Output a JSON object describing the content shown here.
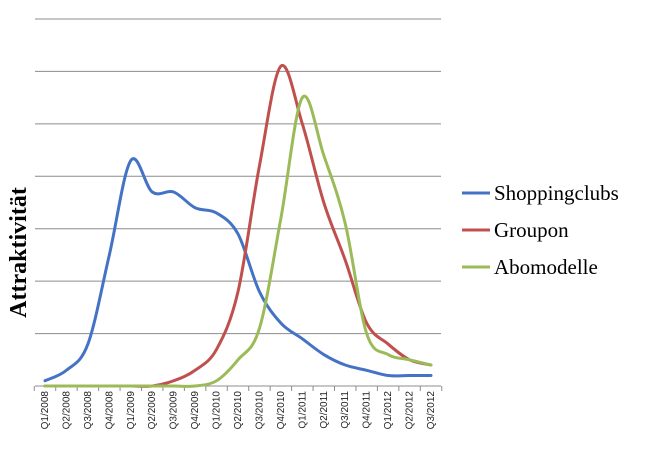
{
  "chart_data": {
    "type": "line",
    "title": "",
    "xlabel": "",
    "ylabel": "Attraktivität",
    "ylim": [
      0,
      7
    ],
    "grid": true,
    "legend_position": "right",
    "categories": [
      "Q1/2008",
      "Q2/2008",
      "Q3/2008",
      "Q4/2008",
      "Q1/2009",
      "Q2/2009",
      "Q3/2009",
      "Q4/2009",
      "Q1/2010",
      "Q2/2010",
      "Q3/2010",
      "Q4/2010",
      "Q1/2011",
      "Q2/2011",
      "Q3/2011",
      "Q4/2011",
      "Q1/2012",
      "Q2/2012",
      "Q3/2012"
    ],
    "series": [
      {
        "name": "Shoppingclubs",
        "color": "#4472C4",
        "values": [
          0.1,
          0.3,
          0.8,
          2.5,
          4.3,
          3.7,
          3.7,
          3.4,
          3.3,
          2.9,
          1.8,
          1.2,
          0.9,
          0.6,
          0.4,
          0.3,
          0.2,
          0.2,
          0.2
        ]
      },
      {
        "name": "Groupon",
        "color": "#C0504D",
        "values": [
          0,
          0,
          0,
          0,
          0,
          0,
          0.1,
          0.3,
          0.7,
          1.8,
          4.2,
          6.1,
          5.0,
          3.5,
          2.4,
          1.2,
          0.8,
          0.5,
          0.4
        ]
      },
      {
        "name": "Abomodelle",
        "color": "#9BBB59",
        "values": [
          0,
          0,
          0,
          0,
          0,
          0,
          0,
          0,
          0.1,
          0.5,
          1.1,
          3.2,
          5.5,
          4.4,
          3.1,
          1.0,
          0.6,
          0.5,
          0.4
        ]
      }
    ]
  }
}
